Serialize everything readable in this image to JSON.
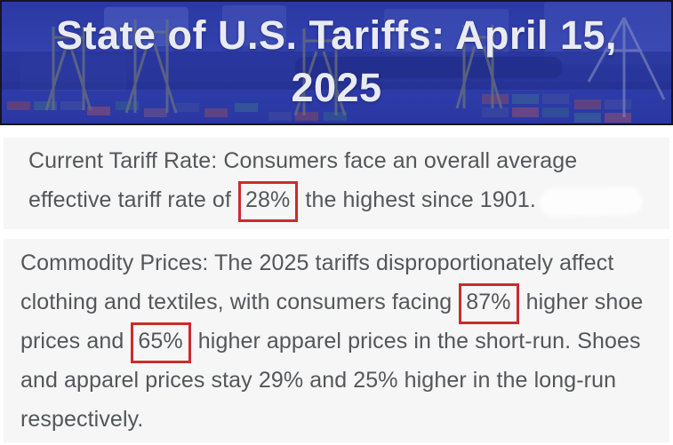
{
  "header": {
    "title_line1": "State of U.S. Tariffs: April 15,",
    "title_line2": "2025",
    "background_scene": "aerial-view-container-port-with-gantry-cranes",
    "overlay_color": "#2e3ca8",
    "title_color": "#eaebf2"
  },
  "colors": {
    "page_bg": "#ffffff",
    "panel_bg": "#f6f6f7",
    "body_text": "#54565a",
    "highlight_box_border": "#cc2b2b",
    "header_border": "#15161f"
  },
  "paragraphs": [
    {
      "id": "current-tariff-rate",
      "segments": [
        {
          "text": "Current Tariff Rate: Consumers face an overall average\neffective tariff rate of "
        },
        {
          "text": "28%",
          "boxed": true
        },
        {
          "text": " the highest since 1901. "
        },
        {
          "redaction": true
        }
      ]
    },
    {
      "id": "commodity-prices",
      "segments": [
        {
          "text": "Commodity Prices: The 2025 tariffs disproportionately affect\nclothing and textiles, with consumers facing "
        },
        {
          "text": "87%",
          "boxed": true
        },
        {
          "text": " higher shoe\nprices and "
        },
        {
          "text": "65%",
          "boxed": true
        },
        {
          "text": " higher apparel prices in the short-run. Shoes\nand apparel prices stay 29% and 25% higher in the long-run\nrespectively."
        }
      ]
    }
  ]
}
